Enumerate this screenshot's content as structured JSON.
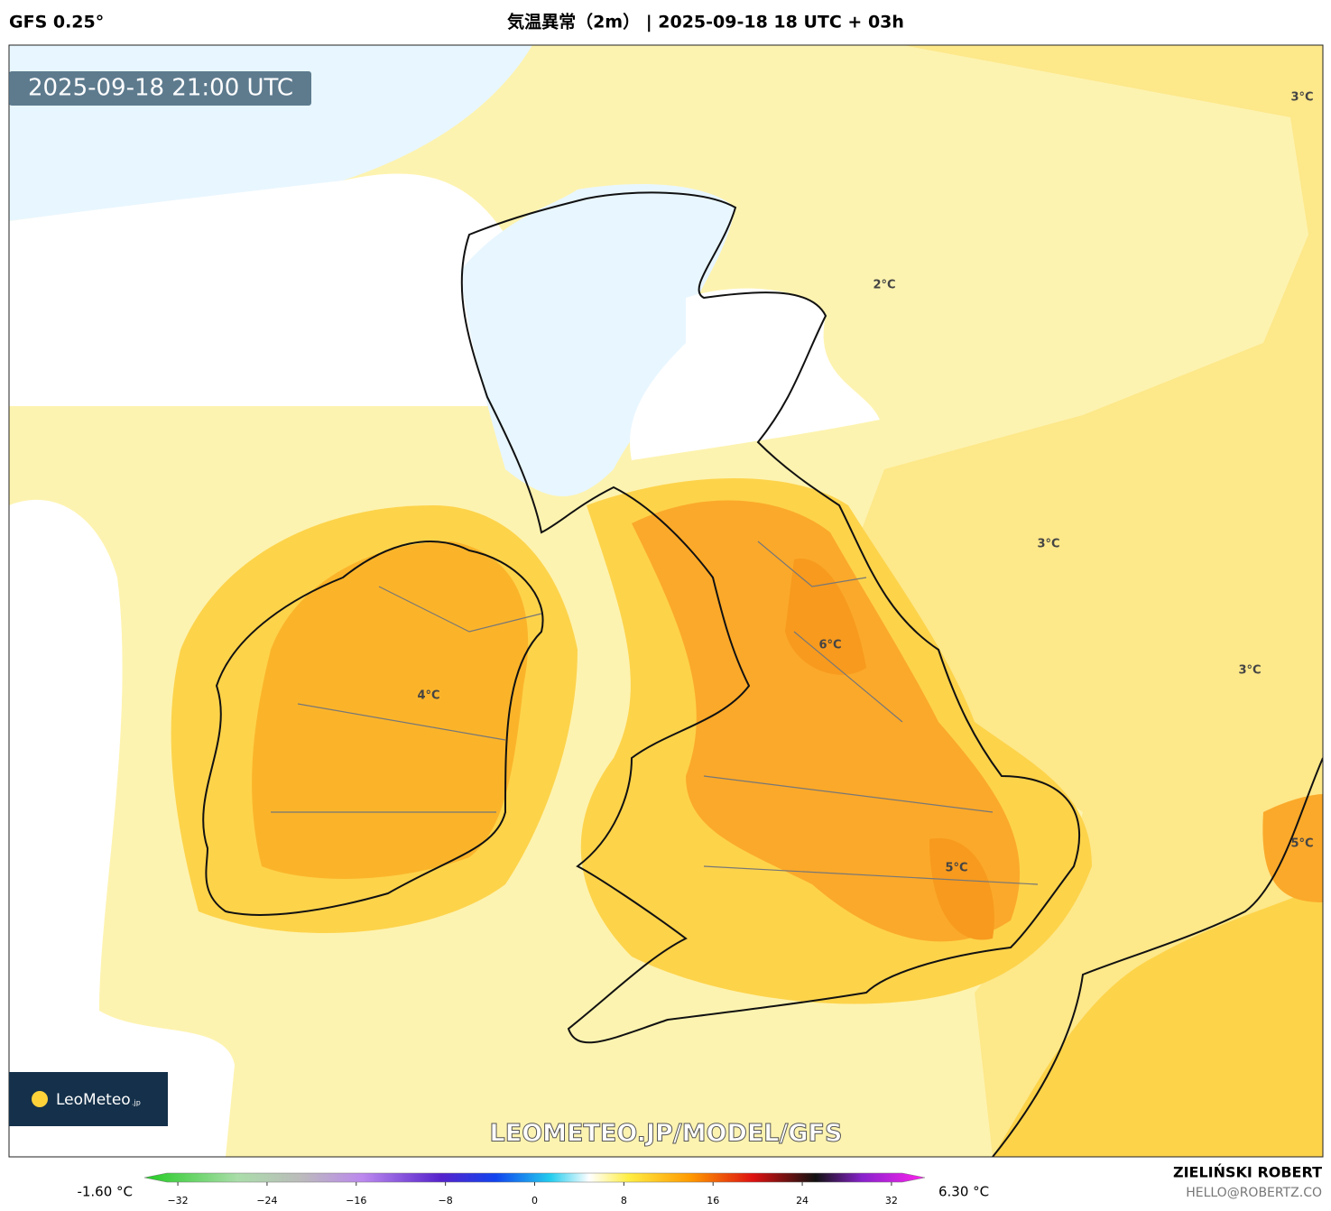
{
  "header": {
    "model": "GFS 0.25°",
    "title": "気温異常（2m） | 2025-09-18 18 UTC + 03h"
  },
  "map": {
    "valid_time": "2025-09-18 21:00 UTC",
    "contour_labels": [
      "3°C",
      "2°C",
      "3°C",
      "3°C",
      "6°C",
      "4°C",
      "5°C",
      "5°C"
    ],
    "watermark": "LEOMETEO.JP/MODEL/GFS",
    "logo": {
      "name": "LeoMeteo",
      "suffix": ".jp"
    }
  },
  "colorbar": {
    "min_label": "-1.60 °C",
    "max_label": "6.30 °C",
    "range": [
      -35,
      35
    ],
    "ticks": [
      {
        "value": -32,
        "label": "−32"
      },
      {
        "value": -24,
        "label": "−24"
      },
      {
        "value": -16,
        "label": "−16"
      },
      {
        "value": -8,
        "label": "−8"
      },
      0,
      8,
      16,
      24,
      32
    ]
  },
  "footer": {
    "author": "ZIELIŃSKI ROBERT",
    "email": "HELLO@ROBERTZ.CO"
  }
}
